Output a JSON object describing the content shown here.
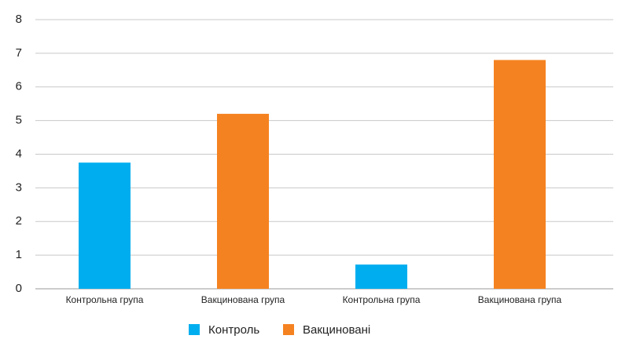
{
  "chart_data": {
    "type": "bar",
    "categories": [
      "Контрольна група",
      "Вакцинована група",
      "Контрольна група",
      "Вакцинована група"
    ],
    "series": [
      {
        "name": "Контроль",
        "color": "#00aeef",
        "values": [
          3.75,
          null,
          0.72,
          null
        ]
      },
      {
        "name": "Вакциновані",
        "color": "#f58220",
        "values": [
          null,
          5.2,
          null,
          6.8
        ]
      }
    ],
    "ylim": [
      0,
      8
    ],
    "yticks": [
      0,
      1,
      2,
      3,
      4,
      5,
      6,
      7,
      8
    ],
    "grid": true
  }
}
